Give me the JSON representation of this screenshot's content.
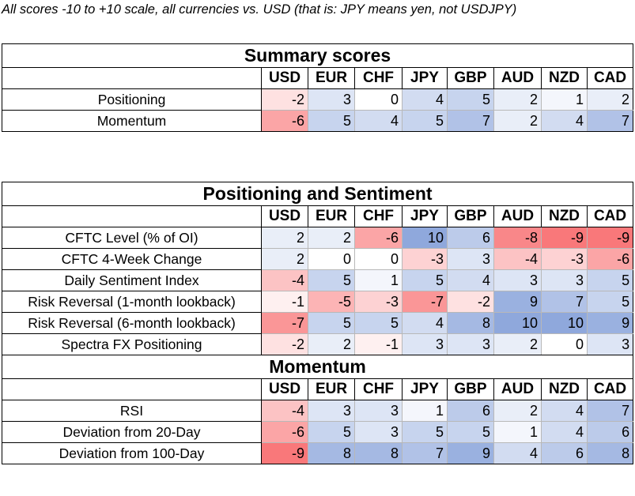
{
  "note": "All scores -10 to +10 scale, all currencies vs. USD (that is: JPY means yen, not USDJPY)",
  "currencies": [
    "USD",
    "EUR",
    "CHF",
    "JPY",
    "GBP",
    "AUD",
    "NZD",
    "CAD"
  ],
  "colors": {
    "positive": "#8fa8dc",
    "negative": "#f8696b",
    "neutral": "#ffffff"
  },
  "sections": [
    {
      "title": "Summary scores",
      "rows": [
        {
          "label": "Positioning",
          "values": [
            -2,
            3,
            0,
            4,
            5,
            2,
            1,
            2
          ]
        },
        {
          "label": "Momentum",
          "values": [
            -6,
            5,
            4,
            5,
            7,
            2,
            4,
            7
          ]
        }
      ]
    },
    {
      "title": "Positioning and Sentiment",
      "rows": [
        {
          "label": "CFTC Level (% of OI)",
          "values": [
            2,
            2,
            -6,
            10,
            6,
            -8,
            -9,
            -9
          ]
        },
        {
          "label": "CFTC 4-Week Change",
          "values": [
            2,
            0,
            0,
            -3,
            3,
            -4,
            -3,
            -6
          ]
        },
        {
          "label": "Daily Sentiment Index",
          "values": [
            -4,
            5,
            1,
            5,
            4,
            3,
            3,
            5
          ]
        },
        {
          "label": "Risk Reversal (1-month lookback)",
          "values": [
            -1,
            -5,
            -3,
            -7,
            -2,
            9,
            7,
            5
          ]
        },
        {
          "label": "Risk Reversal (6-month lookback)",
          "values": [
            -7,
            5,
            5,
            4,
            8,
            10,
            10,
            9
          ]
        },
        {
          "label": "Spectra FX Positioning",
          "values": [
            -2,
            2,
            -1,
            3,
            3,
            2,
            0,
            3
          ]
        }
      ]
    },
    {
      "title": "Momentum",
      "rows": [
        {
          "label": "RSI",
          "values": [
            -4,
            3,
            3,
            1,
            6,
            2,
            4,
            7
          ]
        },
        {
          "label": "Deviation from 20-Day",
          "values": [
            -6,
            5,
            3,
            5,
            5,
            1,
            4,
            6
          ]
        },
        {
          "label": "Deviation from 100-Day",
          "values": [
            -9,
            8,
            8,
            7,
            9,
            4,
            6,
            8
          ]
        }
      ]
    }
  ]
}
